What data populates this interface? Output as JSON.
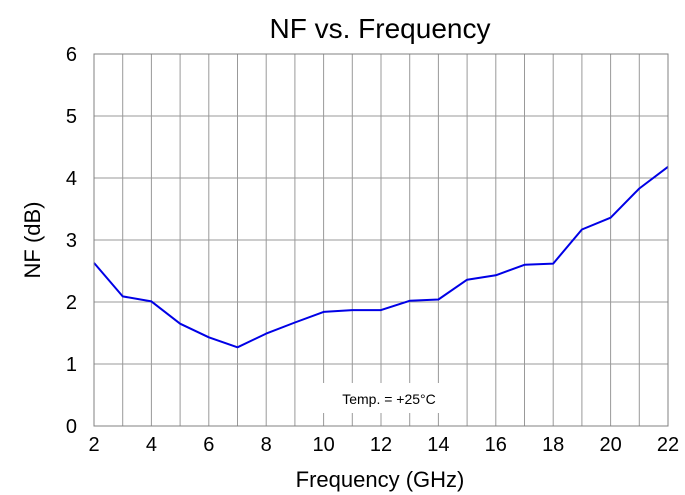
{
  "chart_data": {
    "type": "line",
    "title": "NF vs. Frequency",
    "xlabel": "Frequency (GHz)",
    "ylabel": "NF (dB)",
    "xlim": [
      2,
      22
    ],
    "ylim": [
      0,
      6
    ],
    "xticks": [
      2,
      4,
      6,
      8,
      10,
      12,
      14,
      16,
      18,
      20,
      22
    ],
    "yticks": [
      0,
      1,
      2,
      3,
      4,
      5,
      6
    ],
    "grid": true,
    "annotation": "Temp. = +25°C",
    "colors": {
      "line": "#0000e6",
      "grid": "#999999",
      "frame": "#808080"
    },
    "series": [
      {
        "x": [
          2,
          3,
          4,
          5,
          6,
          7,
          8,
          9,
          10,
          11,
          12,
          13,
          14,
          15,
          16,
          17,
          18,
          19,
          20,
          21,
          22
        ],
        "values": [
          2.63,
          2.09,
          2.01,
          1.65,
          1.43,
          1.27,
          1.49,
          1.67,
          1.84,
          1.87,
          1.87,
          2.02,
          2.04,
          2.36,
          2.43,
          2.6,
          2.62,
          3.17,
          3.36,
          3.83,
          4.18
        ]
      }
    ]
  }
}
